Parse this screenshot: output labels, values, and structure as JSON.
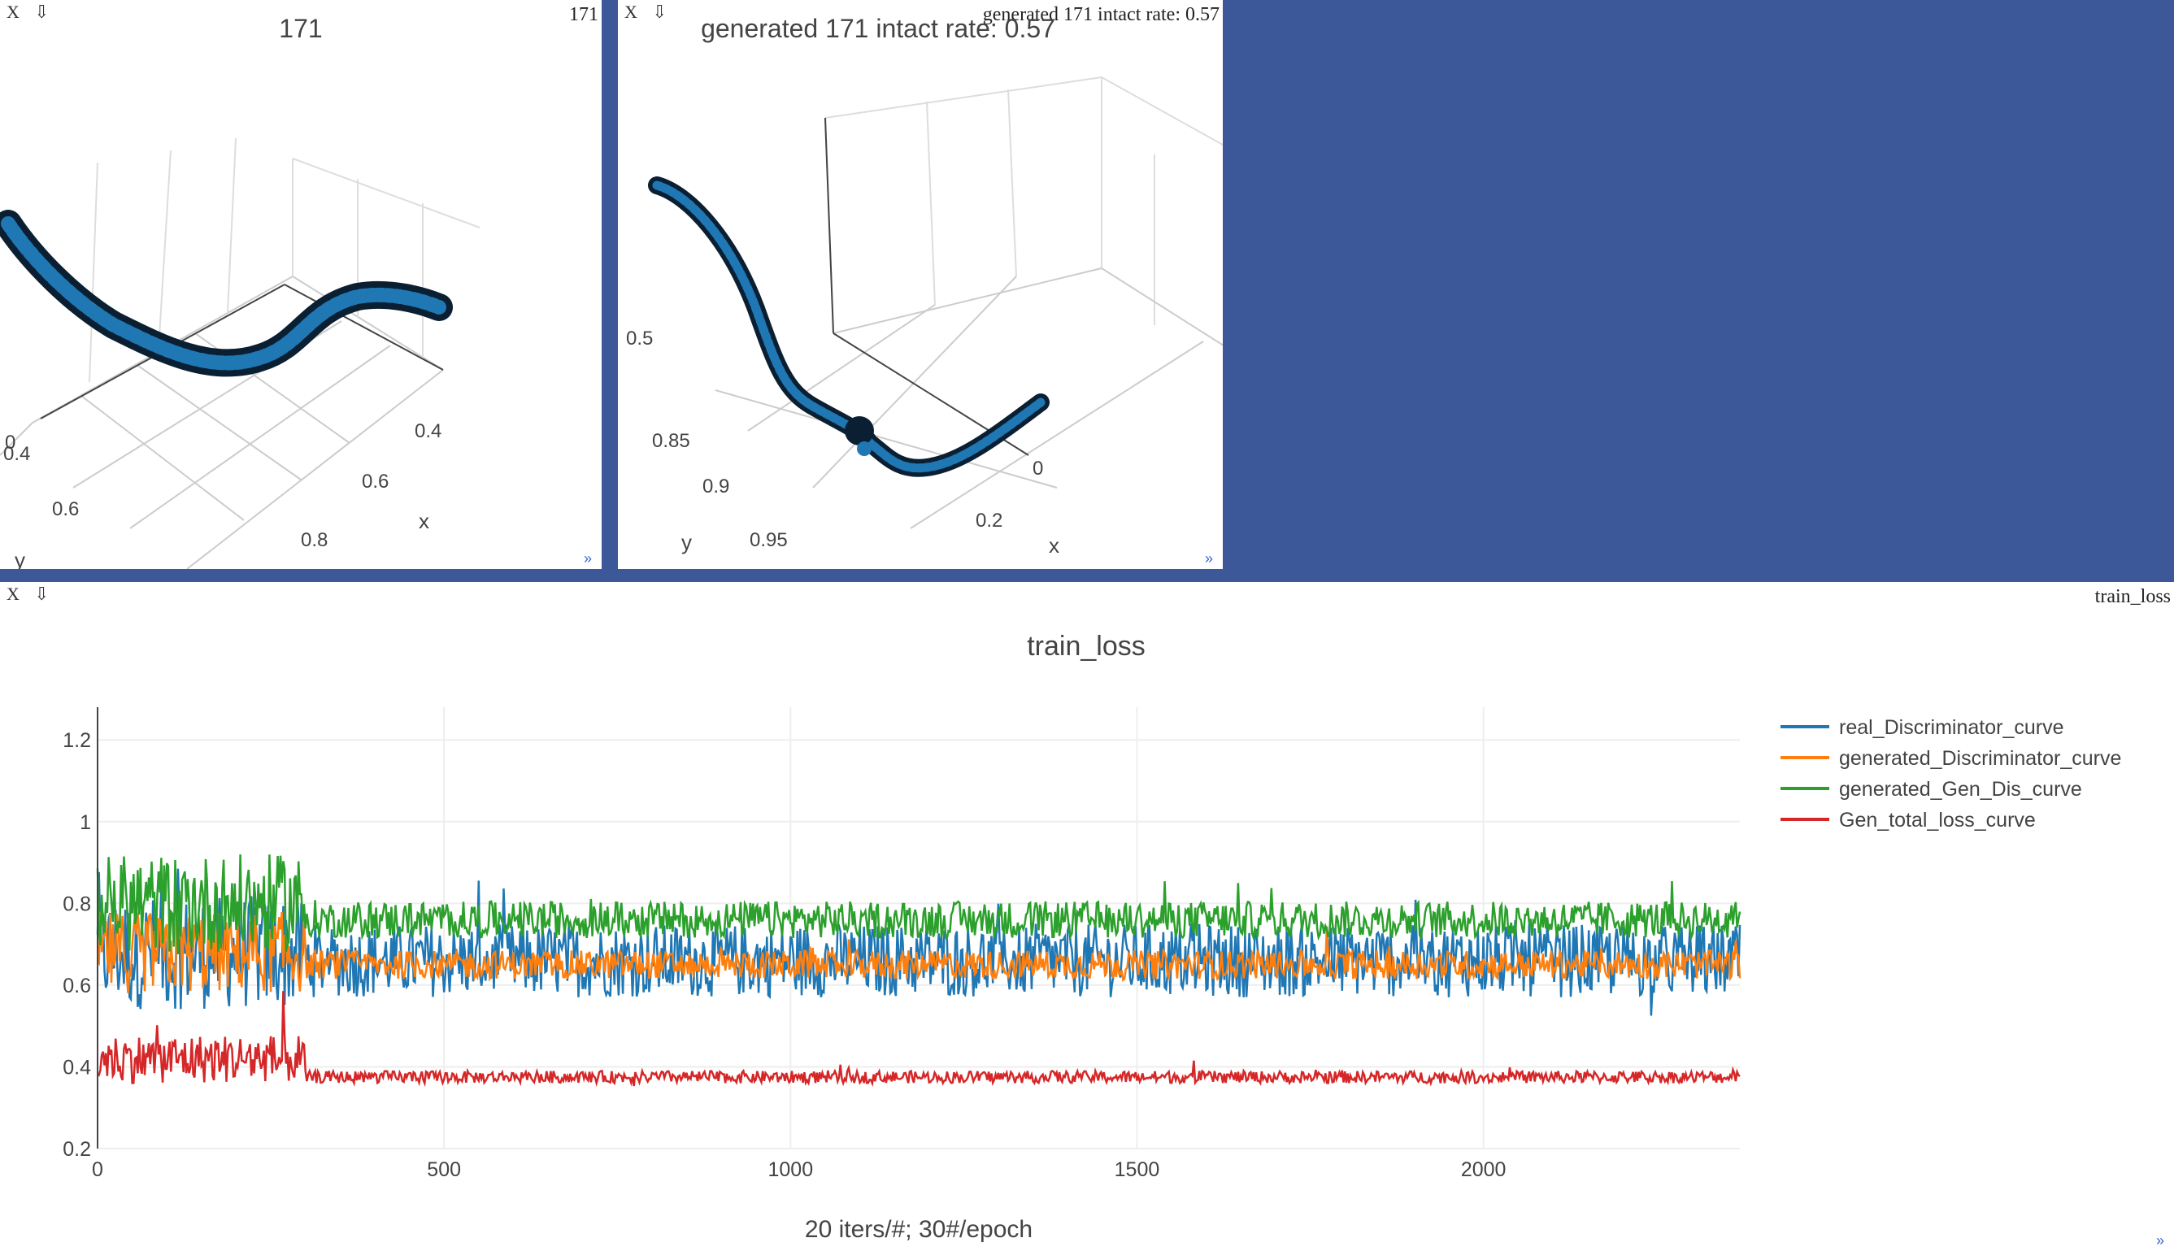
{
  "controls": {
    "close": "X",
    "download": "⇩",
    "resize": "»"
  },
  "pane1": {
    "label": "171",
    "title": "171",
    "axis_labels": {
      "x": "x",
      "y": "y"
    },
    "x_ticks": [
      "0.4",
      "0.6",
      "0.8"
    ],
    "y_ticks": [
      "0.4",
      "0.6"
    ],
    "z_ticks": [
      "0"
    ],
    "marker_color": "#1f77b4"
  },
  "pane2": {
    "label": "generated 171 intact rate: 0.57",
    "title": "generated 171  intact rate: 0.57",
    "axis_labels": {
      "x": "x",
      "y": "y"
    },
    "x_ticks": [
      "0",
      "0.2"
    ],
    "y_ticks": [
      "0.85",
      "0.9",
      "0.95"
    ],
    "z_ticks": [
      "0.5"
    ],
    "marker_color": "#1f77b4"
  },
  "pane3": {
    "label": "train_loss",
    "chart_data": {
      "type": "line",
      "title": "train_loss",
      "xlabel": "20 iters/#; 30#/epoch",
      "ylabel": "",
      "xlim": [
        0,
        2370
      ],
      "ylim": [
        0.2,
        1.28
      ],
      "x_ticks": [
        0,
        500,
        1000,
        1500,
        2000
      ],
      "y_ticks": [
        0.2,
        0.4,
        0.6,
        0.8,
        1,
        1.2
      ],
      "y_tick_labels": [
        "0.2",
        "0.4",
        "0.6",
        "0.8",
        "1",
        "1.2"
      ],
      "x_tick_labels": [
        "0",
        "500",
        "1000",
        "1500",
        "2000"
      ],
      "grid": true,
      "legend_position": "top-right",
      "series": [
        {
          "name": "real_Discriminator_curve",
          "color": "#1f77b4",
          "mean_early": 0.68,
          "mean_late": 0.66,
          "noise_early": 0.14,
          "noise_late": 0.09,
          "x_max": 2370
        },
        {
          "name": "generated_Discriminator_curve",
          "color": "#ff7f0e",
          "mean_early": 0.68,
          "mean_late": 0.65,
          "noise_early": 0.1,
          "noise_late": 0.035,
          "x_max": 2370
        },
        {
          "name": "generated_Gen_Dis_curve",
          "color": "#2ca02c",
          "mean_early": 0.8,
          "mean_late": 0.76,
          "noise_early": 0.12,
          "noise_late": 0.045,
          "x_max": 2370
        },
        {
          "name": "Gen_total_loss_curve",
          "color": "#d62728",
          "mean_early": 0.42,
          "mean_late": 0.375,
          "noise_early": 0.06,
          "noise_late": 0.015,
          "x_max": 2370
        }
      ]
    }
  }
}
